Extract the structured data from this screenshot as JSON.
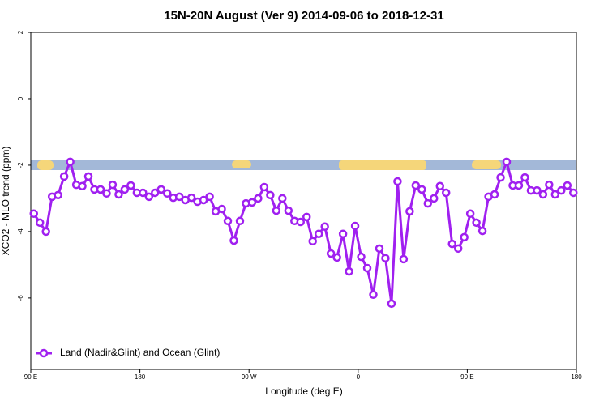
{
  "chart_data": {
    "type": "line",
    "title": "15N-20N August (Ver 9)   2014-09-06 to 2018-12-31",
    "xlabel": "Longitude (deg E)",
    "ylabel": "XCO2 - MLO trend (ppm)",
    "xlim": [
      90,
      540
    ],
    "ylim": [
      -8.15,
      2
    ],
    "xticks": [
      {
        "value": 90,
        "label": "90 E"
      },
      180,
      {
        "value": 270,
        "label": "90 W"
      },
      {
        "value": 360,
        "label": "0"
      },
      {
        "value": 450,
        "label": "90 E"
      },
      {
        "value": 540,
        "label": "180"
      }
    ],
    "yticks": [
      2,
      0,
      -2,
      -4,
      -6
    ],
    "legend": "bottomleft",
    "x": [
      92.5,
      97.5,
      102.5,
      107.5,
      112.5,
      117.5,
      122.5,
      127.5,
      132.5,
      137.5,
      142.5,
      147.5,
      152.5,
      157.5,
      162.5,
      167.5,
      172.5,
      177.5,
      182.5,
      187.5,
      192.5,
      197.5,
      202.5,
      207.5,
      212.5,
      217.5,
      222.5,
      227.5,
      232.5,
      237.5,
      242.5,
      247.5,
      252.5,
      257.5,
      262.5,
      267.5,
      272.5,
      277.5,
      282.5,
      287.5,
      292.5,
      297.5,
      302.5,
      307.5,
      312.5,
      317.5,
      322.5,
      327.5,
      332.5,
      337.5,
      342.5,
      347.5,
      352.5,
      357.5,
      362.5,
      367.5,
      372.5,
      377.5,
      382.5,
      387.5,
      392.5,
      397.5,
      402.5,
      407.5,
      412.5,
      417.5,
      422.5,
      427.5,
      432.5,
      437.5,
      442.5,
      447.5,
      452.5,
      457.5,
      462.5,
      467.5,
      472.5,
      477.5,
      482.5,
      487.5,
      492.5,
      497.5,
      502.5,
      507.5,
      512.5,
      517.5,
      522.5,
      527.5,
      532.5,
      537.5
    ],
    "series": [
      {
        "name": "Land (Nadir&Glint) and Ocean (Glint)",
        "color": "#a020f0",
        "values": [
          -3.46,
          -3.73,
          -4.0,
          -2.95,
          -2.9,
          -2.34,
          -1.9,
          -2.59,
          -2.63,
          -2.34,
          -2.73,
          -2.73,
          -2.85,
          -2.59,
          -2.88,
          -2.73,
          -2.61,
          -2.83,
          -2.83,
          -2.95,
          -2.83,
          -2.73,
          -2.85,
          -2.98,
          -2.95,
          -3.05,
          -2.98,
          -3.1,
          -3.05,
          -2.95,
          -3.39,
          -3.32,
          -3.68,
          -4.27,
          -3.68,
          -3.15,
          -3.12,
          -3.0,
          -2.66,
          -2.9,
          -3.37,
          -3.0,
          -3.37,
          -3.68,
          -3.71,
          -3.56,
          -4.29,
          -4.07,
          -3.85,
          -4.66,
          -4.78,
          -4.07,
          -5.2,
          -3.83,
          -4.76,
          -5.1,
          -5.9,
          -4.51,
          -4.8,
          -6.17,
          -2.49,
          -4.83,
          -3.39,
          -2.61,
          -2.73,
          -3.15,
          -3.0,
          -2.63,
          -2.83,
          -4.37,
          -4.51,
          -4.17,
          -3.46,
          -3.73,
          -3.98,
          -2.95,
          -2.88,
          -2.37,
          -1.9,
          -2.61,
          -2.61,
          -2.37,
          -2.76,
          -2.76,
          -2.88,
          -2.59,
          -2.88,
          -2.76,
          -2.61,
          -2.83
        ]
      }
    ]
  }
}
